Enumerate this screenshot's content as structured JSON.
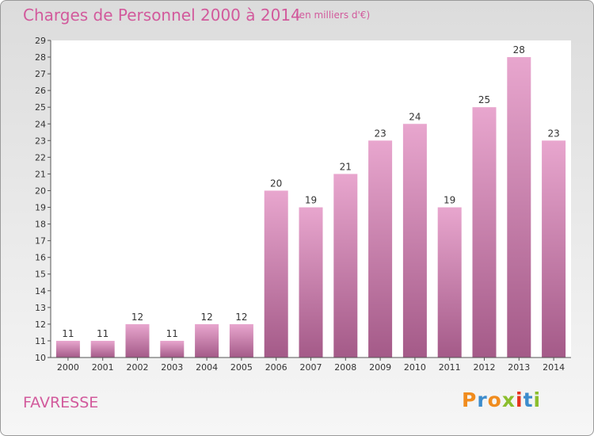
{
  "header": {
    "title": "Charges de Personnel 2000 à 2014",
    "subtitle": "(en milliers d'€)"
  },
  "footer": {
    "place": "FAVRESSE",
    "logo_text": "Proxiti"
  },
  "colors": {
    "title": "#d25a9c",
    "bar_top": "#e8a6ce",
    "bar_bottom": "#a45a88",
    "logo_letters": [
      "#f08c1e",
      "#3c8ccd",
      "#f08c1e",
      "#8cbe2d",
      "#e6321e",
      "#3c8ccd",
      "#8cbe2d"
    ]
  },
  "chart_data": {
    "type": "bar",
    "categories": [
      "2000",
      "2001",
      "2002",
      "2003",
      "2004",
      "2005",
      "2006",
      "2007",
      "2008",
      "2009",
      "2010",
      "2011",
      "2012",
      "2013",
      "2014"
    ],
    "values": [
      11,
      11,
      12,
      11,
      12,
      12,
      20,
      19,
      21,
      23,
      24,
      19,
      25,
      28,
      23
    ],
    "title": "Charges de Personnel 2000 à 2014",
    "ylabel": "",
    "xlabel": "",
    "ylim": [
      10,
      29
    ],
    "yticks": [
      10,
      11,
      12,
      13,
      14,
      15,
      16,
      17,
      18,
      19,
      20,
      21,
      22,
      23,
      24,
      25,
      26,
      27,
      28,
      29
    ],
    "grid": false,
    "data_labels": true
  }
}
